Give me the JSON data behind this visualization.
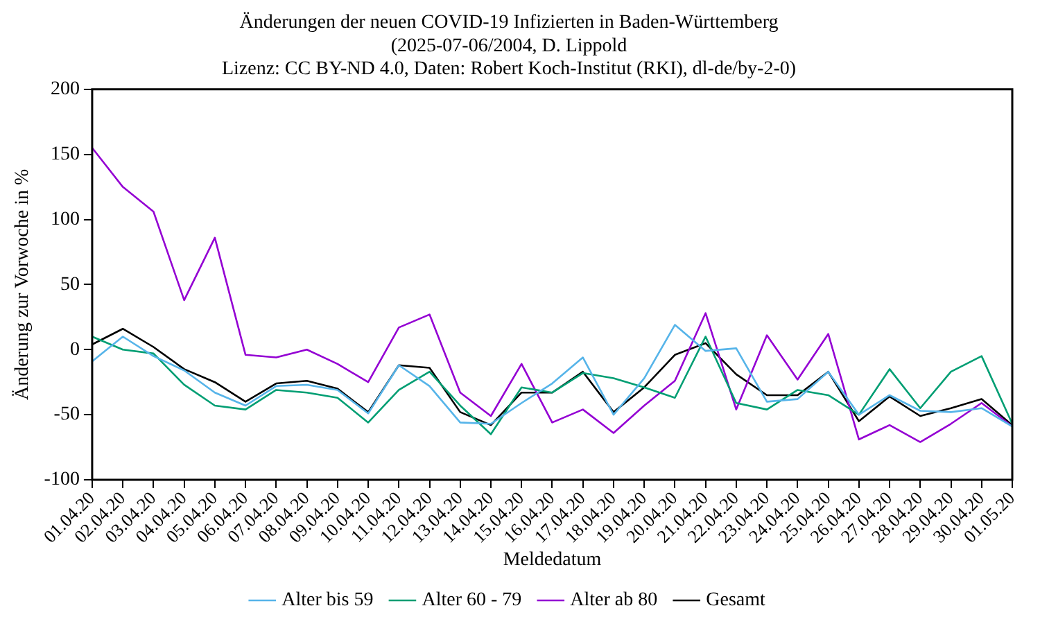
{
  "chart_data": {
    "type": "line",
    "title": [
      "Änderungen der neuen COVID-19 Infizierten in Baden-Württemberg",
      "(2025-07-06/2004, D. Lippold",
      "Lizenz: CC BY-ND 4.0, Daten: Robert Koch-Institut (RKI), dl-de/by-2-0)"
    ],
    "xlabel": "Meldedatum",
    "ylabel": "Änderung zur Vorwoche in %",
    "categories": [
      "01.04.20",
      "02.04.20",
      "03.04.20",
      "04.04.20",
      "05.04.20",
      "06.04.20",
      "07.04.20",
      "08.04.20",
      "09.04.20",
      "10.04.20",
      "11.04.20",
      "12.04.20",
      "13.04.20",
      "14.04.20",
      "15.04.20",
      "16.04.20",
      "17.04.20",
      "18.04.20",
      "19.04.20",
      "20.04.20",
      "21.04.20",
      "22.04.20",
      "23.04.20",
      "24.04.20",
      "25.04.20",
      "26.04.20",
      "27.04.20",
      "28.04.20",
      "29.04.20",
      "30.04.20",
      "01.05.20"
    ],
    "series": [
      {
        "name": "Alter bis 59",
        "color": "#56b4e9",
        "values": [
          -9,
          10,
          -5,
          -16,
          -33,
          -43,
          -28,
          -27,
          -31,
          -49,
          -12,
          -28,
          -56,
          -57,
          -41,
          -26,
          -6,
          -50,
          -22,
          19,
          -1,
          1,
          -40,
          -38,
          -17,
          -50,
          -35,
          -47,
          -48,
          -45,
          -59
        ]
      },
      {
        "name": "Alter 60 - 79",
        "color": "#009e73",
        "values": [
          10,
          0,
          -3,
          -27,
          -43,
          -46,
          -31,
          -33,
          -37,
          -56,
          -31,
          -17,
          -43,
          -65,
          -29,
          -33,
          -18,
          -22,
          -29,
          -37,
          10,
          -41,
          -46,
          -31,
          -35,
          -50,
          -15,
          -45,
          -17,
          -5,
          -57
        ]
      },
      {
        "name": "Alter ab 80",
        "color": "#9400d3",
        "values": [
          155,
          125,
          106,
          38,
          86,
          -4,
          -6,
          0,
          -11,
          -25,
          17,
          27,
          -33,
          -51,
          -11,
          -56,
          -46,
          -64,
          -43,
          -24,
          28,
          -46,
          11,
          -23,
          12,
          -69,
          -58,
          -71,
          -57,
          -41,
          -59
        ]
      },
      {
        "name": "Gesamt",
        "color": "#000000",
        "values": [
          4,
          16,
          2,
          -15,
          -25,
          -40,
          -26,
          -24,
          -30,
          -48,
          -12,
          -14,
          -48,
          -58,
          -33,
          -33,
          -17,
          -48,
          -29,
          -4,
          5,
          -19,
          -35,
          -35,
          -17,
          -55,
          -36,
          -51,
          -45,
          -38,
          -58
        ]
      }
    ],
    "ylim": [
      -100,
      200
    ],
    "yticks": [
      -100,
      -50,
      0,
      50,
      100,
      150,
      200
    ],
    "grid": false,
    "legend": "bottom",
    "marker": "none",
    "line_style": "solid"
  }
}
